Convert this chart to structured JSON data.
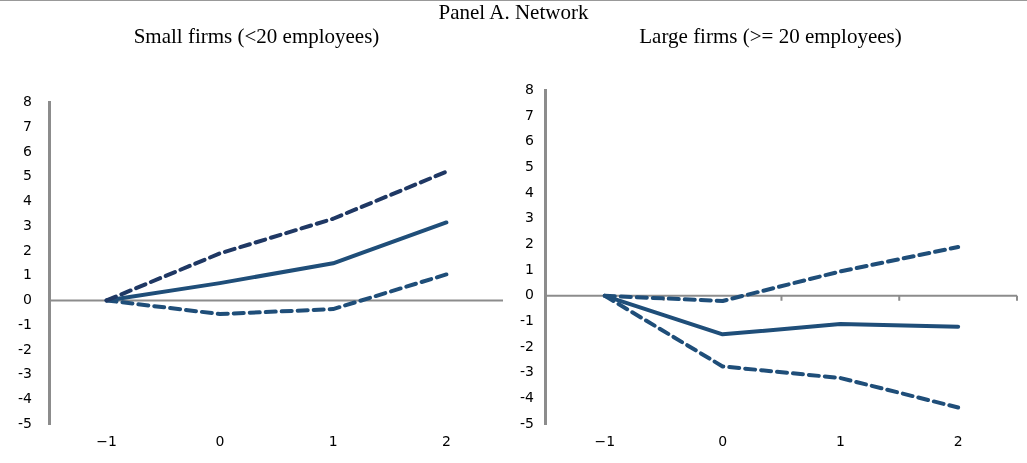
{
  "chart_data": [
    {
      "type": "line",
      "title": "Panel A. Network",
      "subtitle": "Small firms (<20 employees)",
      "categories": [
        "−1",
        "0",
        "1",
        "2"
      ],
      "ylim": [
        -5,
        8
      ],
      "yticks": [
        -5,
        -4,
        -3,
        -2,
        -1,
        0,
        1,
        2,
        3,
        4,
        5,
        6,
        7,
        8
      ],
      "legend": false,
      "marker": "none",
      "series": [
        {
          "color": "#1f3864",
          "line_style": "dashed",
          "values": [
            0,
            1.9,
            3.3,
            5.2
          ]
        },
        {
          "color": "#1f4e79",
          "line_style": "solid",
          "values": [
            0,
            0.7,
            1.5,
            3.15
          ]
        },
        {
          "color": "#1f4e79",
          "line_style": "dashed",
          "values": [
            0,
            -0.55,
            -0.35,
            1.05
          ]
        }
      ]
    },
    {
      "type": "line",
      "subtitle": "Large firms (>= 20 employees)",
      "categories": [
        "−1",
        "0",
        "1",
        "2"
      ],
      "ylim": [
        -5,
        8
      ],
      "yticks": [
        -5,
        -4,
        -3,
        -2,
        -1,
        0,
        1,
        2,
        3,
        4,
        5,
        6,
        7,
        8
      ],
      "legend": false,
      "marker": "none",
      "series": [
        {
          "color": "#1f4e79",
          "line_style": "dashed",
          "values": [
            0,
            -0.2,
            0.95,
            1.9
          ]
        },
        {
          "color": "#1f4e79",
          "line_style": "solid",
          "values": [
            0,
            -1.5,
            -1.1,
            -1.2
          ]
        },
        {
          "color": "#1f4e79",
          "line_style": "dashed",
          "values": [
            0,
            -2.75,
            -3.2,
            -4.35
          ]
        }
      ]
    }
  ]
}
